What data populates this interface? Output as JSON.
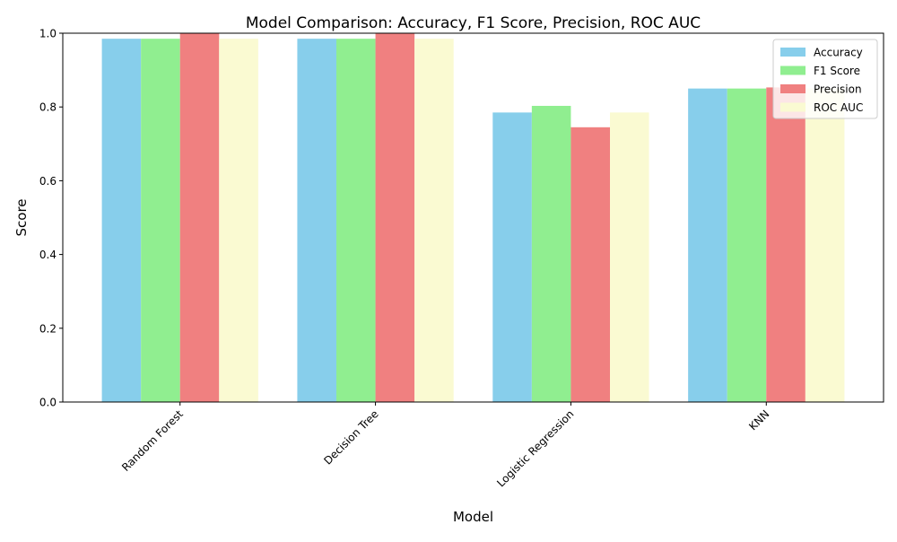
{
  "chart_data": {
    "type": "bar",
    "title": "Model Comparison: Accuracy, F1 Score, Precision, ROC AUC",
    "xlabel": "Model",
    "ylabel": "Score",
    "ylim": [
      0,
      1
    ],
    "yticks": [
      "0.0",
      "0.2",
      "0.4",
      "0.6",
      "0.8",
      "1.0"
    ],
    "categories": [
      "Random Forest",
      "Decision Tree",
      "Logistic Regression",
      "KNN"
    ],
    "series": [
      {
        "name": "Accuracy",
        "color": "#87ceeb",
        "values": [
          0.985,
          0.985,
          0.785,
          0.85
        ]
      },
      {
        "name": "F1 Score",
        "color": "#90ee90",
        "values": [
          0.985,
          0.985,
          0.803,
          0.85
        ]
      },
      {
        "name": "Precision",
        "color": "#f08080",
        "values": [
          1.0,
          1.0,
          0.745,
          0.853
        ]
      },
      {
        "name": "ROC AUC",
        "color": "#fafad2",
        "values": [
          0.985,
          0.985,
          0.785,
          0.85
        ]
      }
    ],
    "legend_position": "top-right",
    "grid": false
  }
}
